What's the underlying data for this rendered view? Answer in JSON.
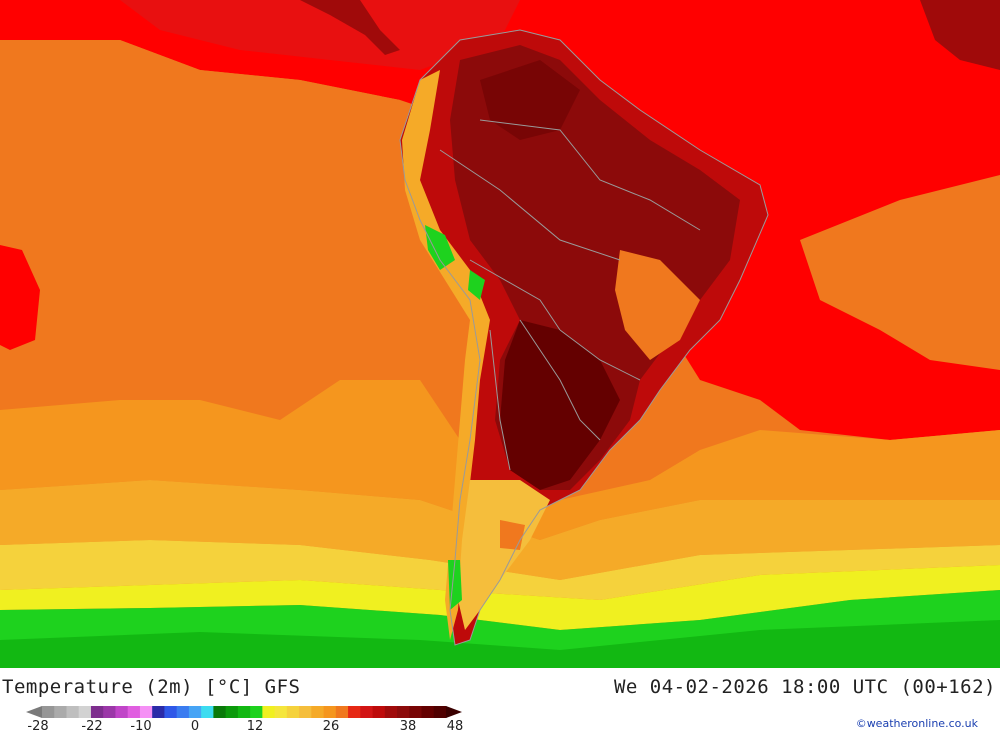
{
  "title": "Temperature (2m) [°C] GFS",
  "valid_time": "We 04-02-2026 18:00 UTC (00+162)",
  "credit": "©weatheronline.co.uk",
  "legend": {
    "ticks": [
      "-28",
      "-22",
      "-10",
      "0",
      "12",
      "26",
      "38",
      "48"
    ],
    "colors": [
      "#969696",
      "#aaaaaa",
      "#bebebe",
      "#d2d2d2",
      "#7e2e8e",
      "#9b37a8",
      "#c045c8",
      "#e05ee0",
      "#f590f5",
      "#2b2ba8",
      "#2f58e8",
      "#3a7cf0",
      "#46a4f5",
      "#3cdcf0",
      "#0a7a0a",
      "#0c9a0c",
      "#12b812",
      "#1ed21e",
      "#f0f020",
      "#f5e63c",
      "#f5d23c",
      "#f5be3c",
      "#f5aa28",
      "#f5961e",
      "#f0781e",
      "#e62814",
      "#d21414",
      "#be0a0a",
      "#a00a0a",
      "#8c0a0a",
      "#780505",
      "#640000",
      "#500000"
    ]
  },
  "map_colors": {
    "ocean_warm": "#ff0000",
    "ocean_orange": "#f0781e",
    "ocean_lightorange": "#f5961e",
    "ocean_amber": "#f5aa28",
    "ocean_gold": "#f5be3c",
    "ocean_yellow": "#f0f020",
    "southern_green": "#1ed21e",
    "southern_darkgreen": "#0c9a0c",
    "land_hot": "#a00a0a",
    "land_veryhot": "#640000",
    "border": "#9a9a9a"
  }
}
